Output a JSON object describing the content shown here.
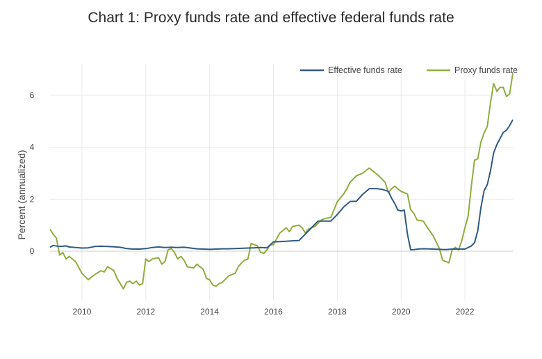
{
  "chart_data": {
    "type": "line",
    "title": "Chart 1: Proxy funds rate and effective federal funds rate",
    "xlabel": "",
    "ylabel": "Percent (annualized)",
    "xlim": [
      2009.0,
      2023.5
    ],
    "ylim": [
      -1.9,
      7.2
    ],
    "x_ticks": [
      2010,
      2012,
      2014,
      2016,
      2018,
      2020,
      2022
    ],
    "y_ticks": [
      0,
      2,
      4,
      6
    ],
    "grid": true,
    "legend_position": "top-right",
    "series": [
      {
        "name": "Effective funds rate",
        "color": "#2e5a84",
        "points": [
          [
            2009.0,
            0.15
          ],
          [
            2009.1,
            0.22
          ],
          [
            2009.3,
            0.18
          ],
          [
            2009.5,
            0.2
          ],
          [
            2009.6,
            0.16
          ],
          [
            2009.8,
            0.14
          ],
          [
            2010.0,
            0.12
          ],
          [
            2010.2,
            0.13
          ],
          [
            2010.4,
            0.18
          ],
          [
            2010.6,
            0.19
          ],
          [
            2010.8,
            0.18
          ],
          [
            2011.0,
            0.17
          ],
          [
            2011.2,
            0.15
          ],
          [
            2011.4,
            0.1
          ],
          [
            2011.6,
            0.08
          ],
          [
            2011.8,
            0.08
          ],
          [
            2012.0,
            0.1
          ],
          [
            2012.2,
            0.14
          ],
          [
            2012.4,
            0.16
          ],
          [
            2012.6,
            0.14
          ],
          [
            2012.8,
            0.15
          ],
          [
            2013.0,
            0.14
          ],
          [
            2013.2,
            0.15
          ],
          [
            2013.4,
            0.12
          ],
          [
            2013.6,
            0.09
          ],
          [
            2013.8,
            0.08
          ],
          [
            2014.0,
            0.07
          ],
          [
            2014.2,
            0.08
          ],
          [
            2014.4,
            0.09
          ],
          [
            2014.6,
            0.09
          ],
          [
            2014.8,
            0.1
          ],
          [
            2015.0,
            0.11
          ],
          [
            2015.2,
            0.12
          ],
          [
            2015.4,
            0.13
          ],
          [
            2015.6,
            0.14
          ],
          [
            2015.8,
            0.13
          ],
          [
            2016.0,
            0.36
          ],
          [
            2016.2,
            0.37
          ],
          [
            2016.4,
            0.38
          ],
          [
            2016.6,
            0.4
          ],
          [
            2016.8,
            0.41
          ],
          [
            2017.0,
            0.66
          ],
          [
            2017.2,
            0.91
          ],
          [
            2017.4,
            1.16
          ],
          [
            2017.6,
            1.16
          ],
          [
            2017.8,
            1.16
          ],
          [
            2018.0,
            1.41
          ],
          [
            2018.2,
            1.7
          ],
          [
            2018.4,
            1.91
          ],
          [
            2018.6,
            1.92
          ],
          [
            2018.8,
            2.19
          ],
          [
            2019.0,
            2.4
          ],
          [
            2019.2,
            2.41
          ],
          [
            2019.4,
            2.38
          ],
          [
            2019.6,
            2.3
          ],
          [
            2019.7,
            2.04
          ],
          [
            2019.8,
            1.83
          ],
          [
            2019.9,
            1.58
          ],
          [
            2020.0,
            1.55
          ],
          [
            2020.1,
            1.58
          ],
          [
            2020.2,
            0.65
          ],
          [
            2020.3,
            0.05
          ],
          [
            2020.4,
            0.06
          ],
          [
            2020.6,
            0.09
          ],
          [
            2020.8,
            0.09
          ],
          [
            2021.0,
            0.08
          ],
          [
            2021.2,
            0.07
          ],
          [
            2021.4,
            0.06
          ],
          [
            2021.6,
            0.08
          ],
          [
            2021.8,
            0.08
          ],
          [
            2022.0,
            0.08
          ],
          [
            2022.2,
            0.2
          ],
          [
            2022.3,
            0.33
          ],
          [
            2022.4,
            0.77
          ],
          [
            2022.5,
            1.68
          ],
          [
            2022.6,
            2.33
          ],
          [
            2022.7,
            2.56
          ],
          [
            2022.8,
            3.08
          ],
          [
            2022.9,
            3.78
          ],
          [
            2023.0,
            4.1
          ],
          [
            2023.1,
            4.33
          ],
          [
            2023.2,
            4.57
          ],
          [
            2023.3,
            4.65
          ],
          [
            2023.4,
            4.83
          ],
          [
            2023.5,
            5.06
          ]
        ]
      },
      {
        "name": "Proxy funds rate",
        "color": "#8fac3e",
        "points": [
          [
            2009.0,
            0.85
          ],
          [
            2009.1,
            0.65
          ],
          [
            2009.2,
            0.5
          ],
          [
            2009.3,
            -0.15
          ],
          [
            2009.4,
            -0.05
          ],
          [
            2009.5,
            -0.3
          ],
          [
            2009.6,
            -0.2
          ],
          [
            2009.8,
            -0.4
          ],
          [
            2010.0,
            -0.85
          ],
          [
            2010.2,
            -1.1
          ],
          [
            2010.4,
            -0.9
          ],
          [
            2010.6,
            -0.75
          ],
          [
            2010.7,
            -0.8
          ],
          [
            2010.8,
            -0.6
          ],
          [
            2011.0,
            -0.75
          ],
          [
            2011.1,
            -1.05
          ],
          [
            2011.3,
            -1.45
          ],
          [
            2011.4,
            -1.2
          ],
          [
            2011.5,
            -1.15
          ],
          [
            2011.6,
            -1.25
          ],
          [
            2011.7,
            -1.15
          ],
          [
            2011.8,
            -1.3
          ],
          [
            2011.9,
            -1.25
          ],
          [
            2012.0,
            -0.3
          ],
          [
            2012.1,
            -0.4
          ],
          [
            2012.2,
            -0.3
          ],
          [
            2012.4,
            -0.25
          ],
          [
            2012.5,
            -0.5
          ],
          [
            2012.6,
            -0.4
          ],
          [
            2012.7,
            0.05
          ],
          [
            2012.8,
            0.1
          ],
          [
            2012.9,
            -0.05
          ],
          [
            2013.0,
            -0.3
          ],
          [
            2013.1,
            -0.2
          ],
          [
            2013.2,
            -0.35
          ],
          [
            2013.3,
            -0.6
          ],
          [
            2013.5,
            -0.65
          ],
          [
            2013.6,
            -0.5
          ],
          [
            2013.8,
            -0.7
          ],
          [
            2013.9,
            -1.05
          ],
          [
            2014.0,
            -1.1
          ],
          [
            2014.1,
            -1.3
          ],
          [
            2014.2,
            -1.35
          ],
          [
            2014.3,
            -1.25
          ],
          [
            2014.4,
            -1.2
          ],
          [
            2014.6,
            -0.95
          ],
          [
            2014.8,
            -0.85
          ],
          [
            2014.9,
            -0.6
          ],
          [
            2015.0,
            -0.45
          ],
          [
            2015.1,
            -0.35
          ],
          [
            2015.2,
            -0.3
          ],
          [
            2015.3,
            0.3
          ],
          [
            2015.4,
            0.25
          ],
          [
            2015.5,
            0.2
          ],
          [
            2015.6,
            -0.05
          ],
          [
            2015.7,
            -0.08
          ],
          [
            2015.8,
            0.05
          ],
          [
            2015.9,
            0.25
          ],
          [
            2016.0,
            0.25
          ],
          [
            2016.2,
            0.7
          ],
          [
            2016.4,
            0.9
          ],
          [
            2016.5,
            0.75
          ],
          [
            2016.6,
            0.95
          ],
          [
            2016.8,
            1.0
          ],
          [
            2016.9,
            0.9
          ],
          [
            2017.0,
            0.7
          ],
          [
            2017.1,
            0.85
          ],
          [
            2017.3,
            0.95
          ],
          [
            2017.5,
            1.2
          ],
          [
            2017.6,
            1.25
          ],
          [
            2017.8,
            1.3
          ],
          [
            2018.0,
            1.9
          ],
          [
            2018.1,
            2.05
          ],
          [
            2018.2,
            2.2
          ],
          [
            2018.3,
            2.4
          ],
          [
            2018.4,
            2.65
          ],
          [
            2018.6,
            2.9
          ],
          [
            2018.8,
            3.0
          ],
          [
            2019.0,
            3.2
          ],
          [
            2019.1,
            3.1
          ],
          [
            2019.3,
            2.9
          ],
          [
            2019.5,
            2.65
          ],
          [
            2019.6,
            2.25
          ],
          [
            2019.7,
            2.4
          ],
          [
            2019.8,
            2.5
          ],
          [
            2019.9,
            2.4
          ],
          [
            2020.0,
            2.3
          ],
          [
            2020.2,
            2.2
          ],
          [
            2020.3,
            1.6
          ],
          [
            2020.4,
            1.45
          ],
          [
            2020.5,
            1.2
          ],
          [
            2020.7,
            1.15
          ],
          [
            2020.8,
            0.95
          ],
          [
            2021.0,
            0.6
          ],
          [
            2021.1,
            0.35
          ],
          [
            2021.2,
            0.1
          ],
          [
            2021.3,
            -0.35
          ],
          [
            2021.5,
            -0.45
          ],
          [
            2021.6,
            0.05
          ],
          [
            2021.7,
            0.15
          ],
          [
            2021.8,
            0.05
          ],
          [
            2021.9,
            0.4
          ],
          [
            2022.0,
            0.9
          ],
          [
            2022.1,
            1.35
          ],
          [
            2022.2,
            2.5
          ],
          [
            2022.3,
            3.5
          ],
          [
            2022.4,
            3.55
          ],
          [
            2022.5,
            4.2
          ],
          [
            2022.6,
            4.55
          ],
          [
            2022.7,
            4.8
          ],
          [
            2022.8,
            5.7
          ],
          [
            2022.9,
            6.45
          ],
          [
            2023.0,
            6.15
          ],
          [
            2023.1,
            6.3
          ],
          [
            2023.2,
            6.3
          ],
          [
            2023.3,
            5.95
          ],
          [
            2023.4,
            6.05
          ],
          [
            2023.5,
            6.85
          ]
        ]
      }
    ]
  },
  "colors": {
    "grid": "#e9e9e9",
    "zero_line": "#cfcfcf"
  }
}
